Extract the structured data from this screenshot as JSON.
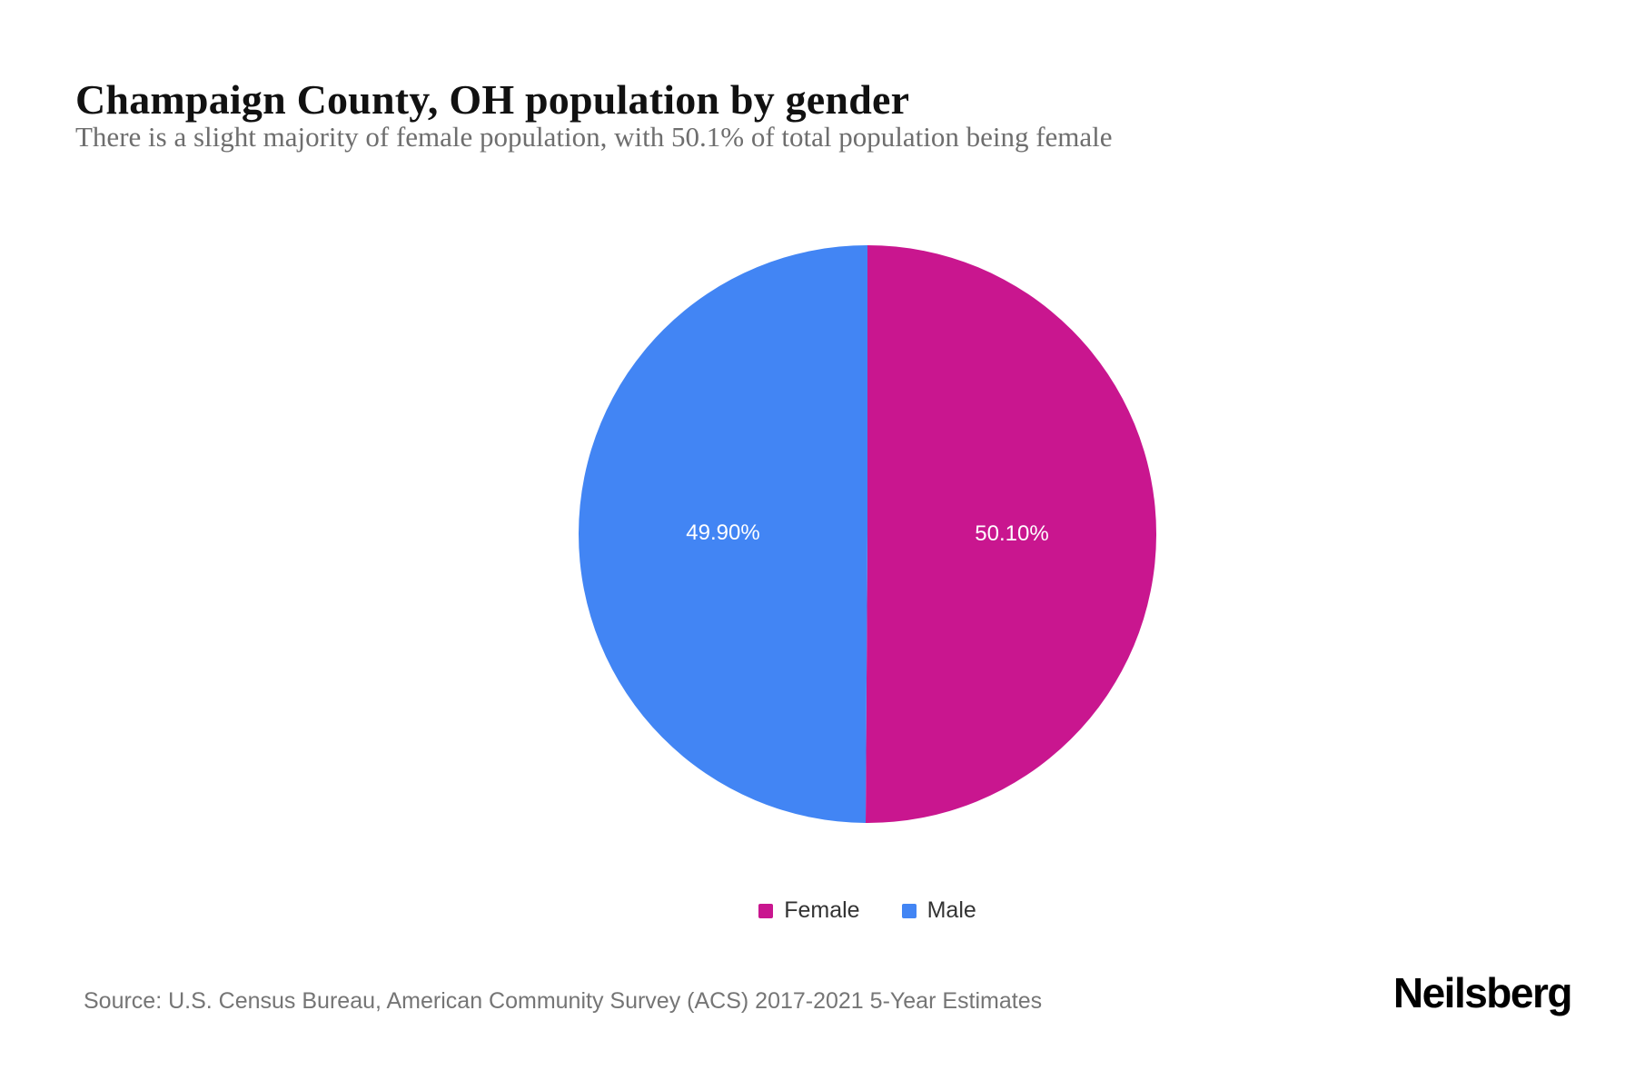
{
  "page": {
    "title": "Champaign County, OH population by gender",
    "subtitle": "There is a slight majority of female population, with 50.1% of total population being female",
    "source": "Source: U.S. Census Bureau, American Community Survey (ACS) 2017-2021 5-Year Estimates",
    "brand": "Neilsberg"
  },
  "chart_data": {
    "type": "pie",
    "title": "Champaign County, OH population by gender",
    "start_angle_deg": 0,
    "direction": "clockwise",
    "legend_position": "bottom",
    "slices": [
      {
        "label": "Female",
        "value": 50.1,
        "display": "50.10%",
        "color": "#c9168f"
      },
      {
        "label": "Male",
        "value": 49.9,
        "display": "49.90%",
        "color": "#4285f4"
      }
    ]
  }
}
